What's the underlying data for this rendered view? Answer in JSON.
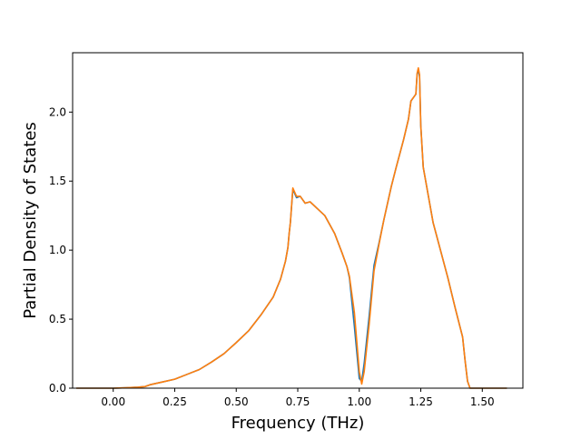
{
  "chart_data": {
    "type": "line",
    "title": "",
    "xlabel": "Frequency (THz)",
    "ylabel": "Partial Density of States",
    "xlim": [
      -0.165,
      1.665
    ],
    "ylim": [
      0.0,
      2.43
    ],
    "xticks": [
      0.0,
      0.25,
      0.5,
      0.75,
      1.0,
      1.25,
      1.5
    ],
    "xtick_labels": [
      "0.00",
      "0.25",
      "0.50",
      "0.75",
      "1.00",
      "1.25",
      "1.50"
    ],
    "yticks": [
      0.0,
      0.5,
      1.0,
      1.5,
      2.0
    ],
    "ytick_labels": [
      "0.0",
      "0.5",
      "1.0",
      "1.5",
      "2.0"
    ],
    "grid": false,
    "legend": "none",
    "series": [
      {
        "color": "#1f77b4",
        "x": [
          -0.15,
          -0.05,
          0.0,
          0.05,
          0.1,
          0.13,
          0.15,
          0.2,
          0.25,
          0.3,
          0.35,
          0.4,
          0.45,
          0.5,
          0.55,
          0.6,
          0.65,
          0.68,
          0.7,
          0.71,
          0.715,
          0.72,
          0.73,
          0.745,
          0.76,
          0.78,
          0.8,
          0.83,
          0.86,
          0.9,
          0.93,
          0.95,
          0.96,
          0.98,
          1.0,
          1.01,
          1.02,
          1.04,
          1.06,
          1.08,
          1.1,
          1.13,
          1.15,
          1.18,
          1.2,
          1.21,
          1.23,
          1.235,
          1.24,
          1.245,
          1.25,
          1.26,
          1.28,
          1.3,
          1.33,
          1.36,
          1.39,
          1.42,
          1.43,
          1.44,
          1.45,
          1.5,
          1.6
        ],
        "y": [
          0.0,
          0.0,
          0.0,
          0.003,
          0.007,
          0.012,
          0.025,
          0.045,
          0.065,
          0.1,
          0.135,
          0.19,
          0.25,
          0.33,
          0.415,
          0.53,
          0.66,
          0.79,
          0.92,
          1.02,
          1.12,
          1.2,
          1.44,
          1.38,
          1.39,
          1.34,
          1.35,
          1.3,
          1.25,
          1.12,
          0.98,
          0.88,
          0.8,
          0.45,
          0.07,
          0.05,
          0.18,
          0.52,
          0.89,
          1.05,
          1.22,
          1.46,
          1.6,
          1.8,
          1.95,
          2.08,
          2.13,
          2.27,
          2.31,
          2.26,
          1.9,
          1.6,
          1.4,
          1.2,
          1.0,
          0.8,
          0.58,
          0.37,
          0.2,
          0.05,
          0.0,
          0.0,
          0.0
        ]
      },
      {
        "color": "#ff7f0e",
        "x": [
          -0.15,
          -0.05,
          0.0,
          0.05,
          0.1,
          0.13,
          0.15,
          0.2,
          0.25,
          0.3,
          0.35,
          0.4,
          0.45,
          0.5,
          0.55,
          0.6,
          0.65,
          0.68,
          0.7,
          0.71,
          0.715,
          0.72,
          0.73,
          0.745,
          0.76,
          0.78,
          0.8,
          0.83,
          0.86,
          0.9,
          0.93,
          0.95,
          0.96,
          0.98,
          1.0,
          1.01,
          1.02,
          1.04,
          1.06,
          1.08,
          1.1,
          1.13,
          1.15,
          1.18,
          1.2,
          1.21,
          1.23,
          1.235,
          1.24,
          1.245,
          1.25,
          1.26,
          1.28,
          1.3,
          1.33,
          1.36,
          1.39,
          1.42,
          1.43,
          1.44,
          1.45,
          1.5,
          1.6
        ],
        "y": [
          0.0,
          0.0,
          0.0,
          0.003,
          0.007,
          0.012,
          0.025,
          0.045,
          0.065,
          0.1,
          0.135,
          0.19,
          0.25,
          0.33,
          0.415,
          0.53,
          0.66,
          0.79,
          0.92,
          1.02,
          1.12,
          1.2,
          1.45,
          1.39,
          1.39,
          1.34,
          1.35,
          1.3,
          1.25,
          1.12,
          0.98,
          0.88,
          0.81,
          0.55,
          0.12,
          0.03,
          0.12,
          0.46,
          0.85,
          1.04,
          1.22,
          1.46,
          1.6,
          1.8,
          1.95,
          2.08,
          2.13,
          2.28,
          2.32,
          2.27,
          1.9,
          1.6,
          1.4,
          1.2,
          1.0,
          0.8,
          0.58,
          0.37,
          0.2,
          0.05,
          0.0,
          0.0,
          0.0
        ]
      }
    ]
  }
}
